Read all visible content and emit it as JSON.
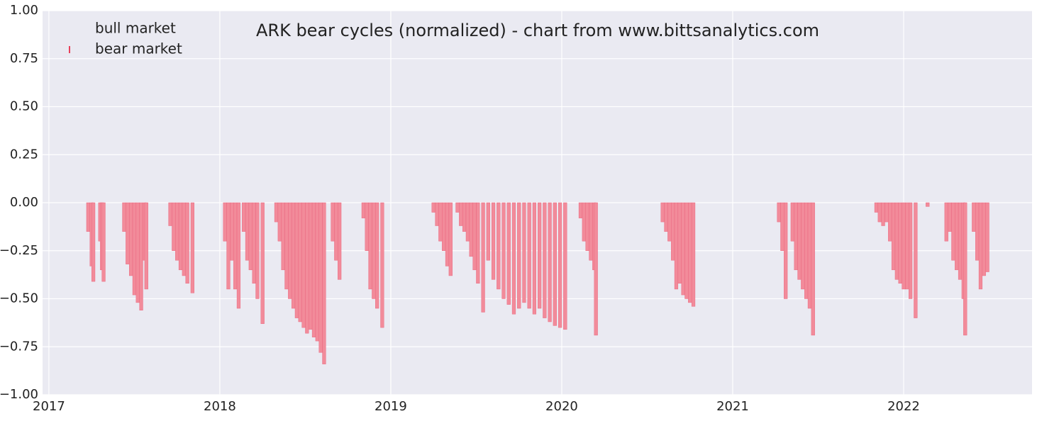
{
  "chart_data": {
    "type": "bar",
    "title": "ARK bear cycles (normalized)  - chart from www.bittsanalytics.com",
    "legend": "upper left",
    "grid": true,
    "xlim": [
      2016.963,
      2022.751
    ],
    "xticks": [
      2017,
      2018,
      2019,
      2020,
      2021,
      2022
    ],
    "ylim": [
      -1,
      1
    ],
    "yticks": [
      {
        "value": -1,
        "label": "−1.00"
      },
      {
        "value": -0.75,
        "label": "−0.75"
      },
      {
        "value": -0.5,
        "label": "−0.50"
      },
      {
        "value": -0.25,
        "label": "−0.25"
      },
      {
        "value": 0,
        "label": "0.00"
      },
      {
        "value": 0.25,
        "label": "0.25"
      },
      {
        "value": 0.5,
        "label": "0.50"
      },
      {
        "value": 0.75,
        "label": "0.75"
      },
      {
        "value": 1,
        "label": "1.00"
      }
    ],
    "series": [
      {
        "name": "bull market",
        "color": "#ffffff",
        "x": [
          2017.0,
          2017.65,
          2018.28,
          2019.1,
          2020.4,
          2021.0,
          2021.7,
          2022.6
        ],
        "values": [
          0,
          0,
          0,
          0,
          0,
          0,
          0,
          0
        ]
      },
      {
        "name": "bear market",
        "color": "#f28b9a",
        "x": [
          2017.23,
          2017.25,
          2017.26,
          2017.3,
          2017.31,
          2017.32,
          2017.44,
          2017.46,
          2017.48,
          2017.5,
          2017.52,
          2017.54,
          2017.56,
          2017.57,
          2017.71,
          2017.73,
          2017.75,
          2017.77,
          2017.79,
          2017.81,
          2017.84,
          2018.03,
          2018.05,
          2018.07,
          2018.09,
          2018.11,
          2018.14,
          2018.16,
          2018.18,
          2018.2,
          2018.22,
          2018.25,
          2018.33,
          2018.35,
          2018.37,
          2018.39,
          2018.41,
          2018.43,
          2018.45,
          2018.47,
          2018.49,
          2018.51,
          2018.53,
          2018.55,
          2018.57,
          2018.59,
          2018.61,
          2018.66,
          2018.68,
          2018.7,
          2018.84,
          2018.86,
          2018.88,
          2018.9,
          2018.92,
          2018.95,
          2019.25,
          2019.27,
          2019.29,
          2019.31,
          2019.33,
          2019.35,
          2019.39,
          2019.41,
          2019.43,
          2019.45,
          2019.47,
          2019.49,
          2019.51,
          2019.54,
          2019.57,
          2019.6,
          2019.63,
          2019.66,
          2019.69,
          2019.72,
          2019.75,
          2019.78,
          2019.81,
          2019.84,
          2019.87,
          2019.9,
          2019.93,
          2019.96,
          2019.99,
          2020.02,
          2020.11,
          2020.13,
          2020.15,
          2020.17,
          2020.19,
          2020.2,
          2020.59,
          2020.61,
          2020.63,
          2020.65,
          2020.67,
          2020.69,
          2020.71,
          2020.73,
          2020.75,
          2020.77,
          2021.27,
          2021.29,
          2021.31,
          2021.35,
          2021.37,
          2021.39,
          2021.41,
          2021.43,
          2021.45,
          2021.47,
          2021.84,
          2021.86,
          2021.88,
          2021.9,
          2021.92,
          2021.94,
          2021.96,
          2021.98,
          2022.0,
          2022.02,
          2022.04,
          2022.07,
          2022.14,
          2022.25,
          2022.27,
          2022.29,
          2022.31,
          2022.33,
          2022.35,
          2022.36,
          2022.41,
          2022.43,
          2022.45,
          2022.47,
          2022.49
        ],
        "values": [
          -0.15,
          -0.33,
          -0.41,
          -0.2,
          -0.35,
          -0.41,
          -0.15,
          -0.32,
          -0.38,
          -0.48,
          -0.52,
          -0.56,
          -0.3,
          -0.45,
          -0.12,
          -0.25,
          -0.3,
          -0.35,
          -0.38,
          -0.42,
          -0.47,
          -0.2,
          -0.45,
          -0.3,
          -0.45,
          -0.55,
          -0.15,
          -0.3,
          -0.35,
          -0.42,
          -0.5,
          -0.63,
          -0.1,
          -0.2,
          -0.35,
          -0.45,
          -0.5,
          -0.55,
          -0.6,
          -0.62,
          -0.65,
          -0.68,
          -0.66,
          -0.7,
          -0.72,
          -0.78,
          -0.84,
          -0.2,
          -0.3,
          -0.4,
          -0.08,
          -0.25,
          -0.45,
          -0.5,
          -0.55,
          -0.65,
          -0.05,
          -0.12,
          -0.2,
          -0.25,
          -0.33,
          -0.38,
          -0.05,
          -0.12,
          -0.15,
          -0.2,
          -0.28,
          -0.35,
          -0.42,
          -0.57,
          -0.3,
          -0.4,
          -0.45,
          -0.5,
          -0.53,
          -0.58,
          -0.55,
          -0.52,
          -0.55,
          -0.58,
          -0.55,
          -0.6,
          -0.62,
          -0.64,
          -0.65,
          -0.66,
          -0.08,
          -0.2,
          -0.25,
          -0.3,
          -0.35,
          -0.69,
          -0.1,
          -0.15,
          -0.2,
          -0.3,
          -0.45,
          -0.42,
          -0.48,
          -0.5,
          -0.52,
          -0.54,
          -0.1,
          -0.25,
          -0.5,
          -0.2,
          -0.35,
          -0.4,
          -0.45,
          -0.5,
          -0.55,
          -0.69,
          -0.05,
          -0.1,
          -0.12,
          -0.1,
          -0.2,
          -0.35,
          -0.4,
          -0.42,
          -0.45,
          -0.45,
          -0.5,
          -0.6,
          -0.02,
          -0.2,
          -0.15,
          -0.3,
          -0.35,
          -0.4,
          -0.5,
          -0.69,
          -0.15,
          -0.3,
          -0.45,
          -0.38,
          -0.36
        ]
      }
    ]
  }
}
